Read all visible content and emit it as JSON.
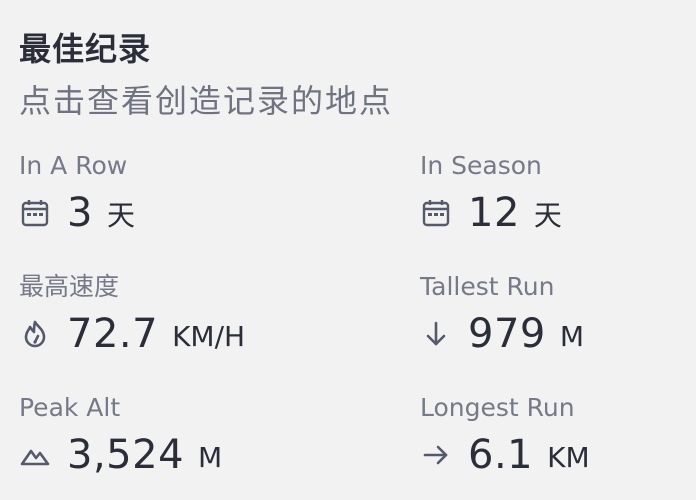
{
  "header": {
    "title": "最佳纪录",
    "subtitle": "点击查看创造记录的地点"
  },
  "stats": [
    {
      "label": "In A Row",
      "icon": "calendar-icon",
      "value": "3",
      "unit": "天"
    },
    {
      "label": "In Season",
      "icon": "calendar-icon",
      "value": "12",
      "unit": "天"
    },
    {
      "label": "最高速度",
      "icon": "speed-gauge-icon",
      "value": "72.7",
      "unit": "KM/H"
    },
    {
      "label": "Tallest Run",
      "icon": "arrow-down-icon",
      "value": "979",
      "unit": "M"
    },
    {
      "label": "Peak Alt",
      "icon": "mountain-icon",
      "value": "3,524",
      "unit": "M"
    },
    {
      "label": "Longest Run",
      "icon": "arrow-right-icon",
      "value": "6.1",
      "unit": "KM"
    }
  ],
  "colors": {
    "background": "#f2f2f3",
    "text_primary": "#2b2e39",
    "text_secondary": "#767987",
    "icon": "#555a6b"
  }
}
